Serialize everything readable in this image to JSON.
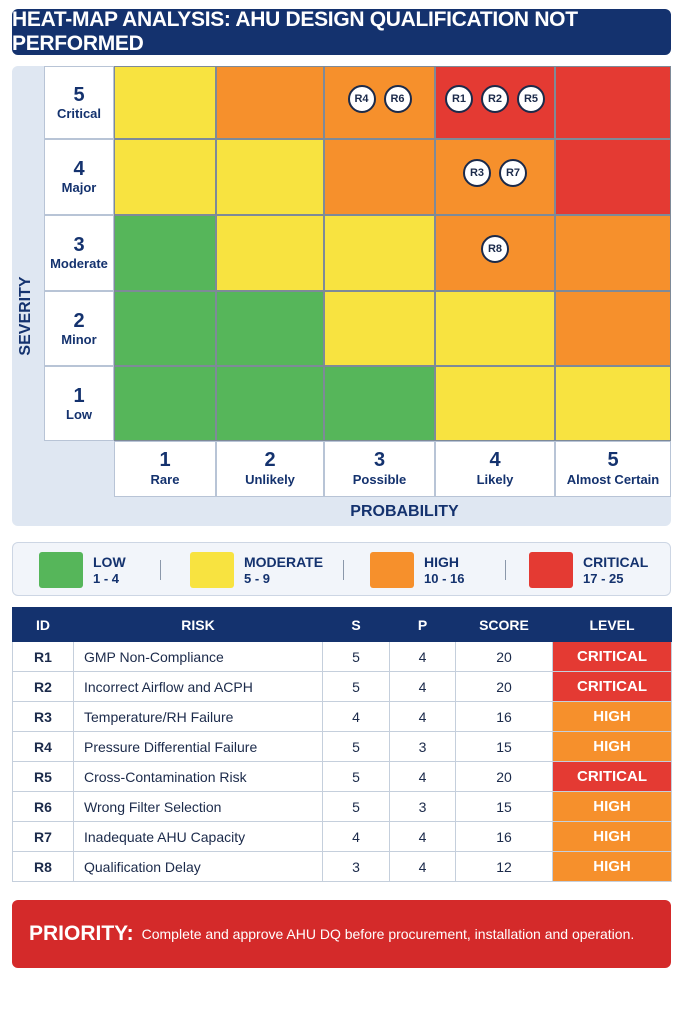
{
  "title": "HEAT-MAP ANALYSIS: AHU DESIGN QUALIFICATION NOT PERFORMED",
  "colors": {
    "low": "#56b65a",
    "moderate": "#f8e340",
    "high": "#f6902c",
    "critical": "#e43a33",
    "navy": "#14326e"
  },
  "chart_data": {
    "type": "heatmap",
    "xlabel": "PROBABILITY",
    "ylabel": "SEVERITY",
    "x_levels": [
      {
        "value": "1",
        "label": "Rare"
      },
      {
        "value": "2",
        "label": "Unlikely"
      },
      {
        "value": "3",
        "label": "Possible"
      },
      {
        "value": "4",
        "label": "Likely"
      },
      {
        "value": "5",
        "label": "Almost Certain"
      }
    ],
    "y_levels": [
      {
        "value": "1",
        "label": "Low"
      },
      {
        "value": "2",
        "label": "Minor"
      },
      {
        "value": "3",
        "label": "Moderate"
      },
      {
        "value": "4",
        "label": "Major"
      },
      {
        "value": "5",
        "label": "Critical"
      }
    ],
    "cell_levels": [
      [
        "low",
        "low",
        "low",
        "moderate",
        "moderate"
      ],
      [
        "low",
        "low",
        "moderate",
        "moderate",
        "high"
      ],
      [
        "low",
        "moderate",
        "moderate",
        "high",
        "high"
      ],
      [
        "moderate",
        "moderate",
        "high",
        "high",
        "critical"
      ],
      [
        "moderate",
        "high",
        "high",
        "critical",
        "critical"
      ]
    ],
    "markers": [
      {
        "id": "R1",
        "severity": 5,
        "probability": 4
      },
      {
        "id": "R2",
        "severity": 5,
        "probability": 4
      },
      {
        "id": "R3",
        "severity": 4,
        "probability": 4
      },
      {
        "id": "R4",
        "severity": 5,
        "probability": 3
      },
      {
        "id": "R5",
        "severity": 5,
        "probability": 4
      },
      {
        "id": "R6",
        "severity": 5,
        "probability": 3
      },
      {
        "id": "R7",
        "severity": 4,
        "probability": 4
      },
      {
        "id": "R8",
        "severity": 3,
        "probability": 4
      }
    ]
  },
  "legend": [
    {
      "key": "low",
      "label": "LOW",
      "range": "1 - 4"
    },
    {
      "key": "moderate",
      "label": "MODERATE",
      "range": "5 - 9"
    },
    {
      "key": "high",
      "label": "HIGH",
      "range": "10 - 16"
    },
    {
      "key": "critical",
      "label": "CRITICAL",
      "range": "17 - 25"
    }
  ],
  "table": {
    "headers": [
      "ID",
      "RISK",
      "S",
      "P",
      "SCORE",
      "LEVEL"
    ],
    "rows": [
      {
        "id": "R1",
        "risk": "GMP Non-Compliance",
        "s": "5",
        "p": "4",
        "score": "20",
        "level": "CRITICAL",
        "level_key": "critical"
      },
      {
        "id": "R2",
        "risk": "Incorrect Airflow and ACPH",
        "s": "5",
        "p": "4",
        "score": "20",
        "level": "CRITICAL",
        "level_key": "critical"
      },
      {
        "id": "R3",
        "risk": "Temperature/RH Failure",
        "s": "4",
        "p": "4",
        "score": "16",
        "level": "HIGH",
        "level_key": "high"
      },
      {
        "id": "R4",
        "risk": "Pressure Differential Failure",
        "s": "5",
        "p": "3",
        "score": "15",
        "level": "HIGH",
        "level_key": "high"
      },
      {
        "id": "R5",
        "risk": "Cross-Contamination Risk",
        "s": "5",
        "p": "4",
        "score": "20",
        "level": "CRITICAL",
        "level_key": "critical"
      },
      {
        "id": "R6",
        "risk": "Wrong Filter Selection",
        "s": "5",
        "p": "3",
        "score": "15",
        "level": "HIGH",
        "level_key": "high"
      },
      {
        "id": "R7",
        "risk": "Inadequate AHU Capacity",
        "s": "4",
        "p": "4",
        "score": "16",
        "level": "HIGH",
        "level_key": "high"
      },
      {
        "id": "R8",
        "risk": "Qualification Delay",
        "s": "3",
        "p": "4",
        "score": "12",
        "level": "HIGH",
        "level_key": "high"
      }
    ]
  },
  "priority": {
    "label": "PRIORITY:",
    "message": "Complete and approve AHU DQ before procurement, installation and operation."
  }
}
